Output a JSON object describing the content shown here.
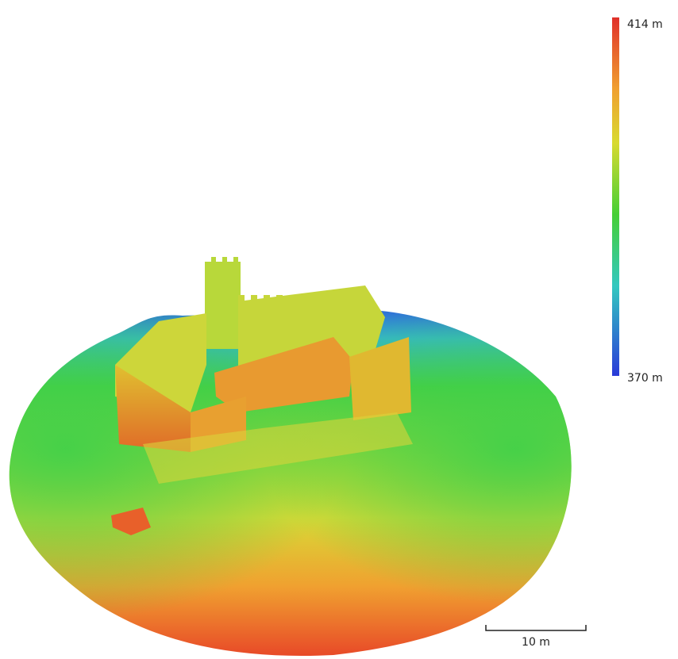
{
  "legend": {
    "max_label": "414 m",
    "min_label": "370 m"
  },
  "scale_bar": {
    "label": "10 m"
  }
}
